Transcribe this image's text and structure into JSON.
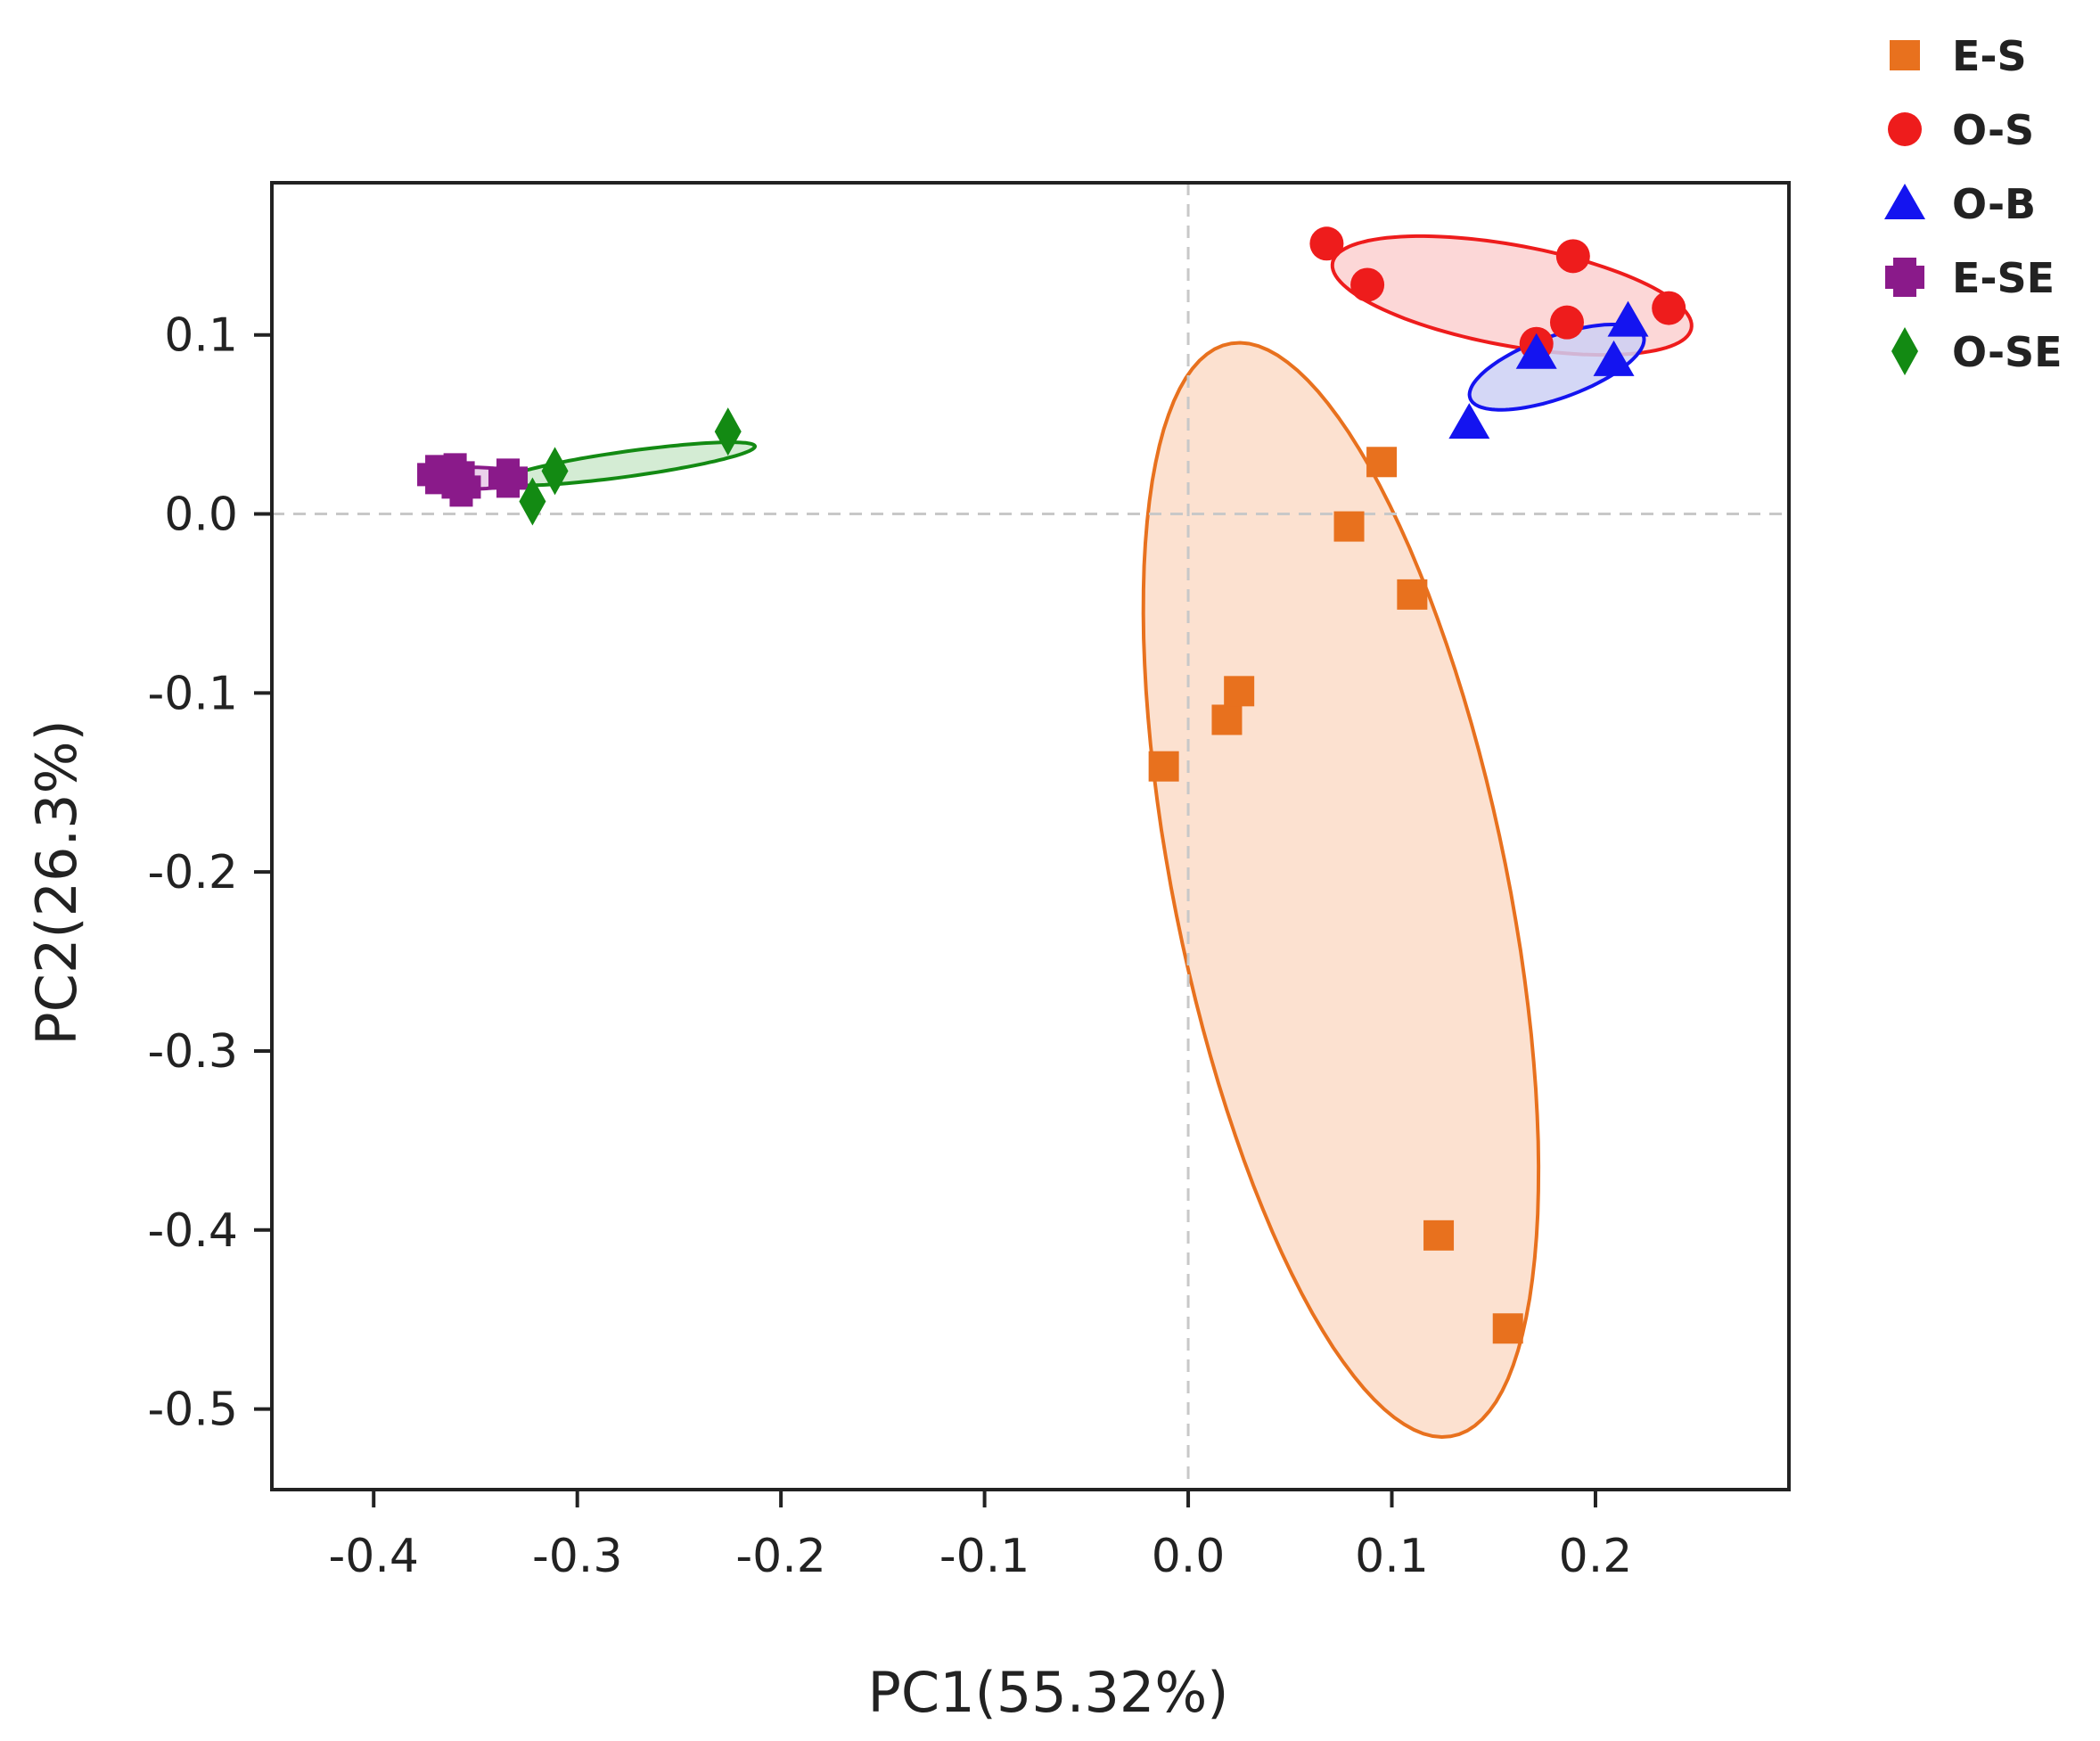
{
  "chart_data": {
    "type": "scatter",
    "subtype": "pca",
    "title": "",
    "xlabel": "PC1(55.32%)",
    "ylabel": "PC2(26.3%)",
    "xlim": [
      -0.45,
      0.295
    ],
    "ylim": [
      -0.545,
      0.185
    ],
    "xticks": [
      -0.4,
      -0.3,
      -0.2,
      -0.1,
      0.0,
      0.1,
      0.2
    ],
    "yticks": [
      0.1,
      0.0,
      -0.1,
      -0.2,
      -0.3,
      -0.4,
      -0.5
    ],
    "xtick_labels": [
      "-0.4",
      "-0.3",
      "-0.2",
      "-0.1",
      "0.0",
      "0.1",
      "0.2"
    ],
    "ytick_labels": [
      "0.1",
      "0.0",
      "-0.1",
      "-0.2",
      "-0.3",
      "-0.4",
      "-0.5"
    ],
    "reference_lines": {
      "x": 0,
      "y": 0,
      "style": "dashed"
    },
    "grid": false,
    "legend_position": "top-right outside",
    "series": [
      {
        "name": "E-S",
        "marker": "square",
        "color": "#e8711e",
        "fill": "#fcdcc8",
        "points": [
          [
            -0.012,
            -0.141
          ],
          [
            0.019,
            -0.115
          ],
          [
            0.025,
            -0.099
          ],
          [
            0.079,
            -0.007
          ],
          [
            0.095,
            0.029
          ],
          [
            0.11,
            -0.045
          ],
          [
            0.123,
            -0.403
          ],
          [
            0.157,
            -0.455
          ]
        ],
        "ellipse": {
          "center": [
            0.075,
            -0.21
          ],
          "rx": 0.082,
          "ry": 0.31,
          "angle_deg": 10
        }
      },
      {
        "name": "O-S",
        "marker": "circle",
        "color": "#ee1c1c",
        "fill": "#fcd0d0",
        "points": [
          [
            0.068,
            0.151
          ],
          [
            0.088,
            0.128
          ],
          [
            0.189,
            0.144
          ],
          [
            0.171,
            0.095
          ],
          [
            0.186,
            0.107
          ],
          [
            0.236,
            0.115
          ]
        ],
        "ellipse": {
          "center": [
            0.159,
            0.122
          ],
          "rx": 0.09,
          "ry": 0.028,
          "angle_deg": -12
        }
      },
      {
        "name": "O-B",
        "marker": "triangle",
        "color": "#1414f0",
        "fill": "#cdd0f5",
        "points": [
          [
            0.138,
            0.051
          ],
          [
            0.171,
            0.09
          ],
          [
            0.209,
            0.086
          ],
          [
            0.216,
            0.108
          ]
        ],
        "ellipse": {
          "center": [
            0.181,
            0.082
          ],
          "rx": 0.046,
          "ry": 0.017,
          "angle_deg": 23
        }
      },
      {
        "name": "E-SE",
        "marker": "cross",
        "color": "#8a1a8a",
        "fill": "#e8c8e8",
        "points": [
          [
            -0.369,
            0.022
          ],
          [
            -0.36,
            0.023
          ],
          [
            -0.357,
            0.015
          ],
          [
            -0.334,
            0.02
          ]
        ],
        "ellipse": {
          "center": [
            -0.35,
            0.02
          ],
          "rx": 0.021,
          "ry": 0.006,
          "angle_deg": 0
        }
      },
      {
        "name": "O-SE",
        "marker": "diamond",
        "color": "#138a13",
        "fill": "#cde9cd",
        "points": [
          [
            -0.322,
            0.007
          ],
          [
            -0.311,
            0.024
          ],
          [
            -0.226,
            0.046
          ]
        ],
        "ellipse": {
          "center": [
            -0.275,
            0.028
          ],
          "rx": 0.063,
          "ry": 0.007,
          "angle_deg": 9
        }
      }
    ]
  }
}
